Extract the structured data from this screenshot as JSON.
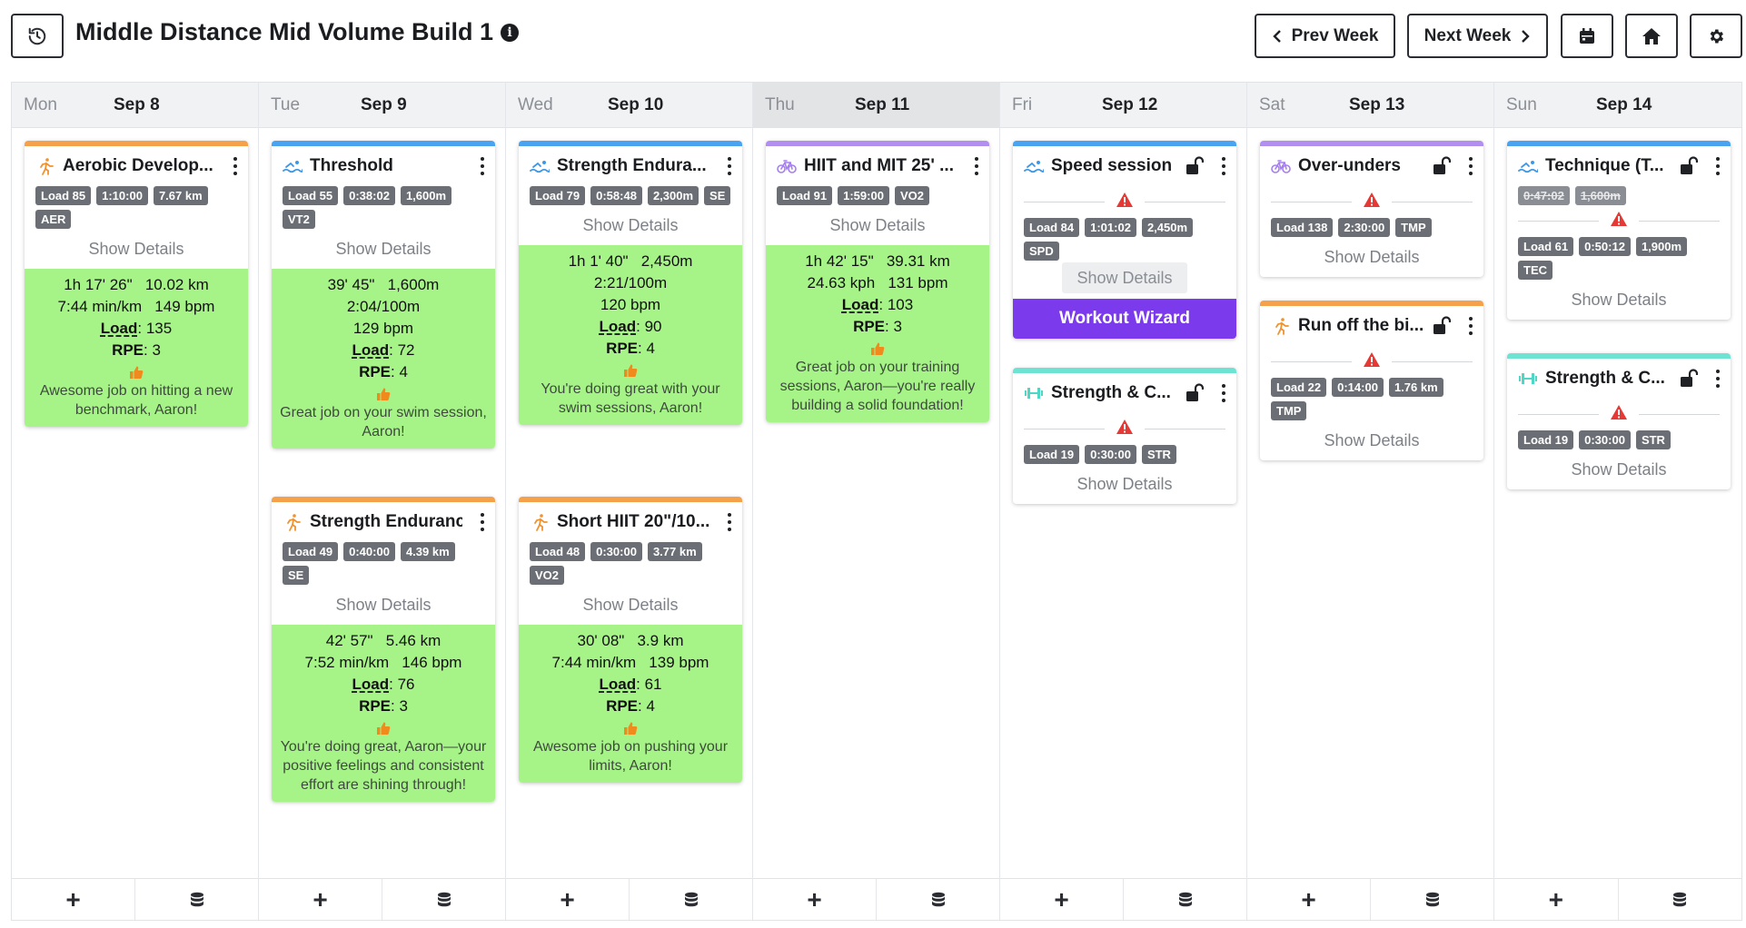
{
  "title": "Middle Distance Mid Volume Build 1",
  "icons": {
    "history": "history-icon",
    "info": "info-icon",
    "calendar": "calendar-icon",
    "home": "home-icon",
    "settings": "gear-icon"
  },
  "nav": {
    "prev": "Prev Week",
    "next": "Next Week"
  },
  "colors": {
    "run": "#f5a04a",
    "swim": "#4aa3f0",
    "bike": "#b28ef0",
    "strength": "#6fe3d3",
    "wizard": "#7c3aed",
    "done": "#a6f487"
  },
  "show_details": "Show Details",
  "workout_wizard": "Workout Wizard",
  "days": [
    {
      "dow": "Mon",
      "date": "Sep 8",
      "cards": [
        {
          "sport": "run",
          "name": "Aerobic Develop...",
          "tags": [
            "Load 85",
            "1:10:00",
            "7.67 km",
            "AER"
          ],
          "summary": {
            "l1": "1h 17' 26\"   10.02 km",
            "l2": "7:44 min/km   149 bpm",
            "load_label": "Load",
            "load": ": 135",
            "rpe_label": "RPE",
            "rpe": ": 3",
            "msg": "Awesome job on hitting a new benchmark, Aaron!"
          }
        }
      ]
    },
    {
      "dow": "Tue",
      "date": "Sep 9",
      "cards": [
        {
          "sport": "swim",
          "name": "Threshold",
          "tags": [
            "Load 55",
            "0:38:02",
            "1,600m",
            "VT2"
          ],
          "summary": {
            "l1": "39' 45\"   1,600m",
            "l2": "2:04/100m",
            "l3": "129 bpm",
            "load_label": "Load",
            "load": ": 72",
            "rpe_label": "RPE",
            "rpe": ": 4",
            "msg": "Great job on your swim session, Aaron!"
          }
        },
        {
          "sport": "run",
          "name": "Strength Endurance",
          "tags": [
            "Load 49",
            "0:40:00",
            "4.39 km",
            "SE"
          ],
          "summary": {
            "l1": "42' 57\"   5.46 km",
            "l2": "7:52 min/km   146 bpm",
            "load_label": "Load",
            "load": ": 76",
            "rpe_label": "RPE",
            "rpe": ": 3",
            "msg": "You're doing great, Aaron—your positive feelings and consistent effort are shining through!"
          }
        }
      ]
    },
    {
      "dow": "Wed",
      "date": "Sep 10",
      "cards": [
        {
          "sport": "swim",
          "name": "Strength Endura...",
          "tags": [
            "Load 79",
            "0:58:48",
            "2,300m",
            "SE"
          ],
          "summary": {
            "l1": "1h 1' 40\"   2,450m",
            "l2": "2:21/100m",
            "l3": "120 bpm",
            "load_label": "Load",
            "load": ": 90",
            "rpe_label": "RPE",
            "rpe": ": 4",
            "msg": "You're doing great with your swim sessions, Aaron!"
          }
        },
        {
          "sport": "run",
          "name": "Short HIIT 20\"/10...",
          "tags": [
            "Load 48",
            "0:30:00",
            "3.77 km",
            "VO2"
          ],
          "summary": {
            "l1": "30' 08\"   3.9 km",
            "l2": "7:44 min/km   139 bpm",
            "load_label": "Load",
            "load": ": 61",
            "rpe_label": "RPE",
            "rpe": ": 4",
            "msg": "Awesome job on pushing your limits, Aaron!"
          }
        }
      ]
    },
    {
      "dow": "Thu",
      "date": "Sep 11",
      "cards": [
        {
          "sport": "bike",
          "name": "HIIT and MIT 25' ...",
          "tags": [
            "Load 91",
            "1:59:00",
            "VO2"
          ],
          "summary": {
            "l1": "1h 42' 15\"   39.31 km",
            "l2": "24.63 kph   131 bpm",
            "load_label": "Load",
            "load": ": 103",
            "rpe_label": "RPE",
            "rpe": ": 3",
            "msg": "Great job on your training sessions, Aaron—you're really building a solid foundation!"
          }
        }
      ]
    },
    {
      "dow": "Fri",
      "date": "Sep 12",
      "cards": [
        {
          "sport": "swim",
          "name": "Speed session",
          "tags": [
            "Load 84",
            "1:01:02",
            "2,450m",
            "SPD"
          ]
        },
        {
          "sport": "strength",
          "name": "Strength & C...",
          "tags": [
            "Load 19",
            "0:30:00",
            "STR"
          ]
        }
      ]
    },
    {
      "dow": "Sat",
      "date": "Sep 13",
      "cards": [
        {
          "sport": "bike",
          "name": "Over-unders",
          "tags": [
            "Load 138",
            "2:30:00",
            "TMP"
          ]
        },
        {
          "sport": "run",
          "name": "Run off the bi...",
          "tags": [
            "Load 22",
            "0:14:00",
            "1.76 km",
            "TMP"
          ]
        }
      ]
    },
    {
      "dow": "Sun",
      "date": "Sep 14",
      "cards": [
        {
          "sport": "swim",
          "name": "Technique (T...",
          "planned": [
            "0:47:02",
            "1,600m"
          ],
          "tags": [
            "Load 61",
            "0:50:12",
            "1,900m",
            "TEC"
          ]
        },
        {
          "sport": "strength",
          "name": "Strength & C...",
          "tags": [
            "Load 19",
            "0:30:00",
            "STR"
          ]
        }
      ]
    }
  ]
}
